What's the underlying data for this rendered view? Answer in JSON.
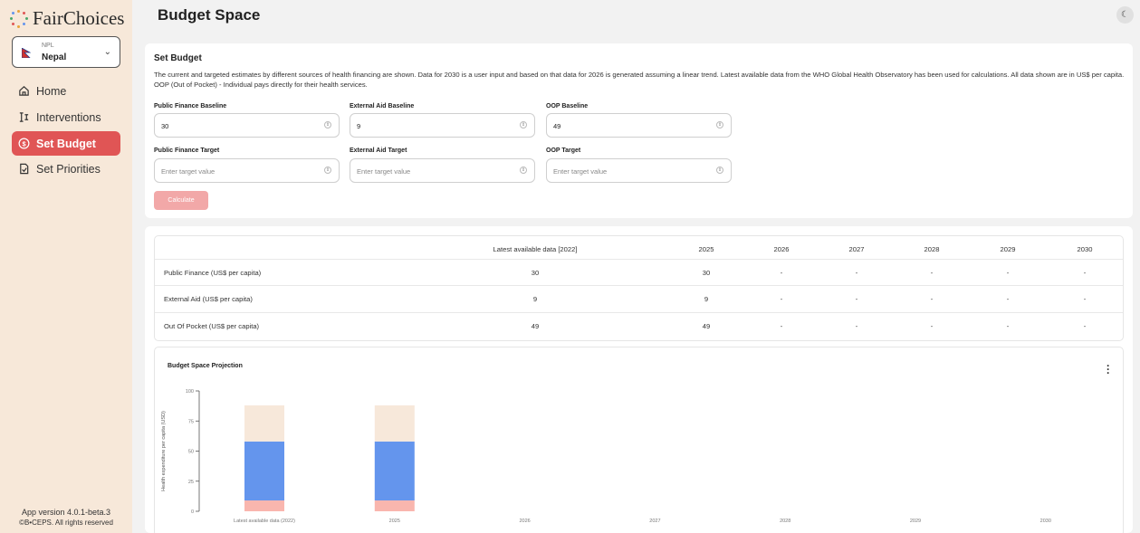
{
  "sidebar": {
    "logo_text": "FairChoices",
    "country": {
      "code": "NPL",
      "name": "Nepal"
    },
    "nav": [
      {
        "label": "Home",
        "icon": "home-icon",
        "active": false
      },
      {
        "label": "Interventions",
        "icon": "interventions-icon",
        "active": false
      },
      {
        "label": "Set Budget",
        "icon": "dollar-circle-icon",
        "active": true
      },
      {
        "label": "Set Priorities",
        "icon": "document-icon",
        "active": false
      }
    ],
    "app_version": "App version 4.0.1-beta.3",
    "copyright": "©B•CEPS. All rights reserved"
  },
  "header": {
    "title": "Budget Space",
    "theme_icon": "theme-toggle-icon"
  },
  "set_budget": {
    "title": "Set Budget",
    "description": "The current and targeted estimates by different sources of health financing are shown. Data for 2030 is a user input and based on that data for 2026 is generated assuming a linear trend. Latest available data from the WHO Global Health Observatory has been used for calculations. All data shown are in US$ per capita. OOP (Out of Pocket) - Individual pays directly for their health services.",
    "baseline": [
      {
        "label": "Public Finance Baseline",
        "value": "30"
      },
      {
        "label": "External Aid Baseline",
        "value": "9"
      },
      {
        "label": "OOP Baseline",
        "value": "49"
      }
    ],
    "target": [
      {
        "label": "Public Finance Target",
        "placeholder": "Enter target value"
      },
      {
        "label": "External Aid Target",
        "placeholder": "Enter target value"
      },
      {
        "label": "OOP Target",
        "placeholder": "Enter target value"
      }
    ],
    "calculate_label": "Calculate"
  },
  "table": {
    "columns": [
      "",
      "Latest available data [2022]",
      "2025",
      "2026",
      "2027",
      "2028",
      "2029",
      "2030"
    ],
    "rows": [
      [
        "Public Finance (US$ per capita)",
        "30",
        "30",
        "-",
        "-",
        "-",
        "-",
        "-"
      ],
      [
        "External Aid (US$ per capita)",
        "9",
        "9",
        "-",
        "-",
        "-",
        "-",
        "-"
      ],
      [
        "Out Of Pocket (US$ per capita)",
        "49",
        "49",
        "-",
        "-",
        "-",
        "-",
        "-"
      ]
    ]
  },
  "chart_data": {
    "type": "bar",
    "title": "Budget Space Projection",
    "ylabel": "Health expenditure per capita (USD)",
    "xlabel": "",
    "ylim": [
      0,
      100
    ],
    "yticks": [
      0,
      25,
      50,
      75,
      100
    ],
    "stacked": true,
    "categories": [
      "Latest available data (2022)",
      "2025",
      "2026",
      "2027",
      "2028",
      "2029",
      "2030"
    ],
    "series": [
      {
        "color": "#f9b6ae",
        "values": [
          9,
          9,
          null,
          null,
          null,
          null,
          null
        ]
      },
      {
        "color": "#6495ed",
        "values": [
          49,
          49,
          null,
          null,
          null,
          null,
          null
        ]
      },
      {
        "color": "#f7e8da",
        "values": [
          30,
          30,
          null,
          null,
          null,
          null,
          null
        ]
      }
    ],
    "colors": {
      "accent": "#e05555",
      "sidebar_bg": "#f7e8d9"
    }
  }
}
